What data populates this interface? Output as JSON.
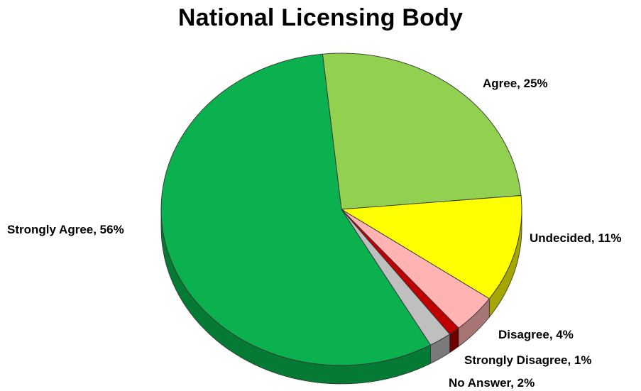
{
  "chart_data": {
    "type": "pie",
    "title": "National Licensing Body",
    "slices": [
      {
        "label": "Agree",
        "value": 25,
        "display": "Agree, 25%",
        "color": "#92d050",
        "side_color": "#6d9c3b"
      },
      {
        "label": "Undecided",
        "value": 11,
        "display": "Undecided, 11%",
        "color": "#ffff00",
        "side_color": "#a6a600"
      },
      {
        "label": "Disagree",
        "value": 4,
        "display": "Disagree, 4%",
        "color": "#ffb3b3",
        "side_color": "#a87575"
      },
      {
        "label": "Strongly Disagree",
        "value": 1,
        "display": "Strongly Disagree, 1%",
        "color": "#c00000",
        "side_color": "#6e0000"
      },
      {
        "label": "No Answer",
        "value": 2,
        "display": "No Answer, 2%",
        "color": "#bfbfbf",
        "side_color": "#7a7a7a"
      },
      {
        "label": "Strongly Agree",
        "value": 56,
        "display": "Strongly Agree, 56%",
        "color": "#0bb04f",
        "side_color": "#057a35"
      }
    ],
    "legend": "none",
    "style": "3d"
  }
}
